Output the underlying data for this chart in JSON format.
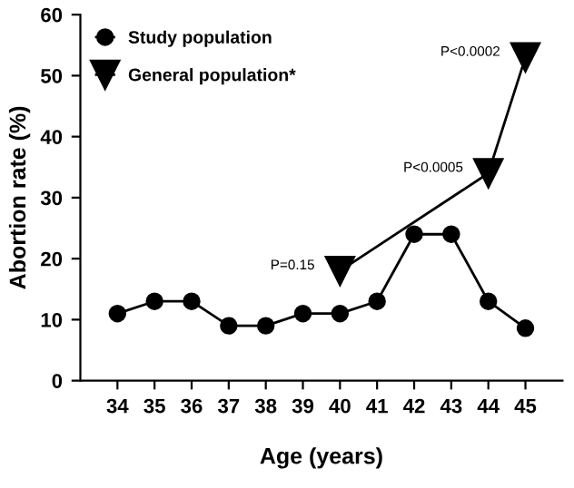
{
  "chart_data": {
    "type": "line",
    "xlabel": "Age (years)",
    "ylabel": "Abortion rate (%)",
    "x": [
      34,
      35,
      36,
      37,
      38,
      39,
      40,
      41,
      42,
      43,
      44,
      45
    ],
    "series": [
      {
        "name": "Study population",
        "color": "#000000",
        "marker": "circle",
        "values": [
          11,
          13,
          13,
          9,
          9,
          11,
          11,
          13,
          24,
          24,
          13,
          8.6
        ]
      },
      {
        "name": "General population*",
        "color": "#000000",
        "marker": "triangle",
        "x": [
          40,
          44,
          45
        ],
        "values": [
          18,
          34,
          53
        ]
      }
    ],
    "xlim": [
      33,
      46
    ],
    "xticks": [
      34,
      35,
      36,
      37,
      38,
      39,
      40,
      41,
      42,
      43,
      44,
      45
    ],
    "ylim": [
      0,
      60
    ],
    "yticks": [
      0,
      10,
      20,
      30,
      40,
      50,
      60
    ],
    "annotations": [
      {
        "text": "P=0.15",
        "x": 40,
        "y": 18
      },
      {
        "text": "P<0.0005",
        "x": 44,
        "y": 34
      },
      {
        "text": "P<0.0002",
        "x": 45,
        "y": 53
      }
    ],
    "legend": "top left",
    "grid": false
  }
}
